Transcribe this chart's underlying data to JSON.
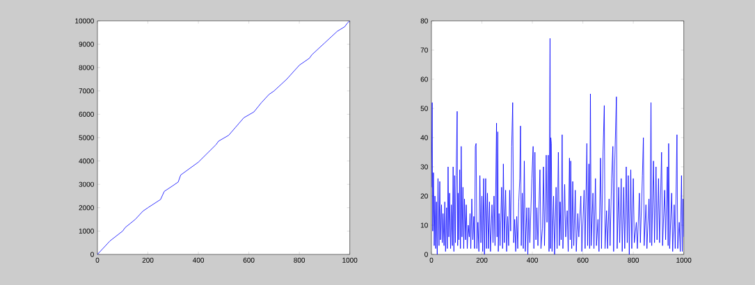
{
  "chart_data": [
    {
      "type": "line",
      "color": "#0000ff",
      "xlim": [
        0,
        1000
      ],
      "ylim": [
        0,
        10000
      ],
      "xticks": [
        0,
        200,
        400,
        600,
        800,
        1000
      ],
      "yticks": [
        0,
        1000,
        2000,
        3000,
        4000,
        5000,
        6000,
        7000,
        8000,
        9000,
        10000
      ],
      "x": [
        0,
        50,
        100,
        110,
        150,
        180,
        200,
        250,
        265,
        300,
        320,
        330,
        400,
        470,
        480,
        520,
        560,
        580,
        620,
        650,
        680,
        700,
        750,
        800,
        840,
        850,
        900,
        950,
        980,
        990,
        1000
      ],
      "values": [
        0,
        580,
        1000,
        1150,
        1500,
        1850,
        2000,
        2350,
        2700,
        2950,
        3100,
        3400,
        3950,
        4700,
        4850,
        5100,
        5600,
        5850,
        6100,
        6500,
        6850,
        7000,
        7500,
        8100,
        8400,
        8550,
        9050,
        9550,
        9750,
        9900,
        10000
      ]
    },
    {
      "type": "line",
      "color": "#0000ff",
      "xlim": [
        0,
        1000
      ],
      "ylim": [
        0,
        80
      ],
      "xticks": [
        0,
        200,
        400,
        600,
        800,
        1000
      ],
      "yticks": [
        0,
        10,
        20,
        30,
        40,
        50,
        60,
        70,
        80
      ],
      "x": [
        0,
        3,
        5,
        8,
        11,
        14,
        17,
        20,
        23,
        26,
        30,
        33,
        36,
        40,
        43,
        46,
        50,
        53,
        56,
        60,
        63,
        66,
        69,
        72,
        76,
        79,
        83,
        86,
        89,
        92,
        95,
        98,
        102,
        104,
        106,
        109,
        112,
        115,
        118,
        121,
        125,
        128,
        131,
        135,
        138,
        142,
        146,
        150,
        153,
        156,
        160,
        164,
        168,
        171,
        174,
        177,
        180,
        184,
        188,
        192,
        196,
        200,
        203,
        207,
        210,
        215,
        218,
        222,
        226,
        230,
        234,
        240,
        244,
        248,
        252,
        258,
        260,
        263,
        265,
        268,
        272,
        278,
        282,
        285,
        289,
        294,
        298,
        302,
        306,
        310,
        314,
        318,
        322,
        326,
        330,
        334,
        338,
        342,
        346,
        350,
        353,
        356,
        360,
        364,
        368,
        372,
        378,
        382,
        386,
        390,
        398,
        403,
        406,
        410,
        414,
        418,
        422,
        430,
        434,
        440,
        444,
        448,
        455,
        458,
        463,
        466,
        470,
        472,
        473,
        475,
        478,
        484,
        488,
        494,
        498,
        503,
        507,
        510,
        514,
        518,
        521,
        528,
        532,
        538,
        542,
        547,
        550,
        552,
        556,
        560,
        564,
        570,
        574,
        580,
        584,
        592,
        596,
        605,
        609,
        616,
        619,
        624,
        627,
        630,
        633,
        640,
        644,
        650,
        654,
        660,
        664,
        670,
        674,
        680,
        685,
        688,
        694,
        698,
        704,
        708,
        714,
        719,
        722,
        726,
        733,
        736,
        742,
        746,
        752,
        756,
        762,
        766,
        772,
        776,
        780,
        784,
        790,
        794,
        800,
        804,
        812,
        816,
        824,
        828,
        836,
        840,
        843,
        850,
        854,
        862,
        866,
        870,
        873,
        880,
        884,
        890,
        894,
        900,
        904,
        912,
        916,
        924,
        928,
        935,
        938,
        940,
        944,
        952,
        956,
        962,
        966,
        973,
        976,
        982,
        986,
        991,
        994,
        997,
        1000
      ],
      "values": [
        23,
        52,
        8,
        28,
        3,
        20,
        2,
        18,
        0,
        26,
        3,
        25,
        5,
        17,
        4,
        14,
        3,
        18,
        1,
        16,
        2,
        30,
        6,
        21,
        2,
        17,
        3,
        30,
        1,
        27,
        4,
        27,
        49,
        3,
        21,
        5,
        29,
        2,
        37,
        6,
        23,
        2,
        19,
        5,
        17,
        2,
        10,
        6,
        14,
        2,
        19,
        5,
        13,
        2,
        37,
        38,
        2,
        11,
        1,
        27,
        4,
        20,
        1,
        26,
        0,
        26,
        2,
        21,
        2,
        18,
        1,
        17,
        4,
        20,
        3,
        45,
        6,
        42,
        1,
        14,
        3,
        23,
        2,
        31,
        4,
        22,
        1,
        13,
        3,
        22,
        8,
        37,
        52,
        4,
        12,
        1,
        13,
        2,
        18,
        26,
        44,
        3,
        21,
        2,
        32,
        1,
        16,
        0,
        16,
        4,
        26,
        37,
        2,
        35,
        5,
        16,
        3,
        29,
        2,
        9,
        30,
        3,
        34,
        11,
        34,
        1,
        74,
        2,
        40,
        38,
        1,
        20,
        0,
        23,
        2,
        35,
        3,
        18,
        5,
        41,
        2,
        24,
        6,
        15,
        1,
        33,
        5,
        32,
        2,
        25,
        3,
        22,
        1,
        14,
        6,
        20,
        1,
        22,
        2,
        38,
        3,
        31,
        2,
        55,
        3,
        21,
        2,
        26,
        3,
        12,
        1,
        33,
        2,
        35,
        51,
        2,
        15,
        2,
        19,
        3,
        26,
        37,
        1,
        30,
        54,
        2,
        23,
        4,
        26,
        1,
        23,
        2,
        30,
        4,
        27,
        0,
        29,
        2,
        26,
        4,
        11,
        2,
        21,
        4,
        27,
        40,
        3,
        17,
        2,
        19,
        4,
        52,
        3,
        32,
        4,
        30,
        5,
        26,
        4,
        35,
        3,
        22,
        5,
        30,
        3,
        38,
        2,
        21,
        1,
        17,
        2,
        41,
        2,
        11,
        1,
        27,
        1,
        19,
        6
      ]
    }
  ]
}
